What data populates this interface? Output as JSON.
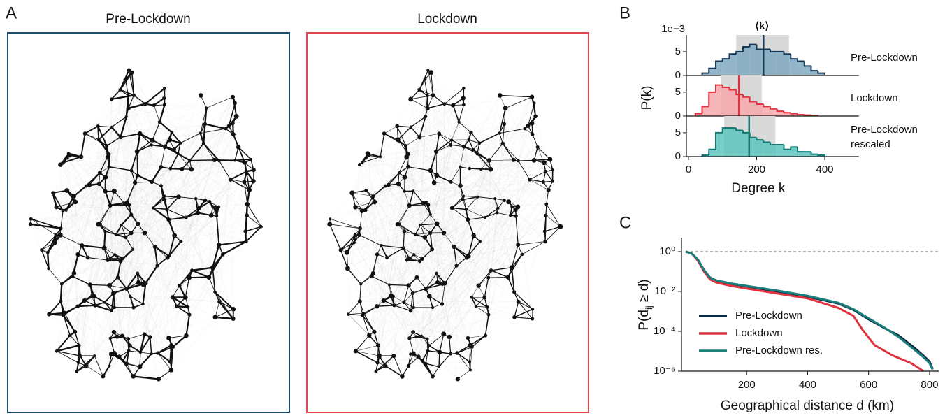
{
  "maps": {
    "label": "A",
    "titles": [
      "Pre-Lockdown",
      "Lockdown"
    ]
  },
  "chart_data": [
    {
      "type": "histogram",
      "label": "B",
      "xlabel": "Degree k",
      "ylabel": "P(k)",
      "offset_label": "1e−3",
      "mean_label": "⟨k⟩",
      "xlim": [
        0,
        500
      ],
      "xticks": [
        0,
        200,
        400
      ],
      "ylim": [
        0,
        8.5
      ],
      "yticks": [
        0,
        5
      ],
      "series": [
        {
          "name_lines": [
            "Pre-Lockdown"
          ],
          "color": "#163a5a",
          "fill": "#7fa8c0",
          "mean": 220,
          "band": [
            140,
            295
          ],
          "bins": [
            40,
            60,
            80,
            100,
            120,
            140,
            160,
            180,
            200,
            220,
            240,
            260,
            280,
            300,
            320,
            340,
            360,
            380,
            400
          ],
          "values": [
            0.5,
            1.5,
            3,
            3.5,
            4.5,
            5,
            6,
            6.5,
            5.5,
            5.5,
            5,
            5,
            4.5,
            3.5,
            3,
            2,
            1,
            0.5
          ]
        },
        {
          "name_lines": [
            "Lockdown"
          ],
          "color": "#e0333f",
          "fill": "#f6a8ad",
          "mean": 148,
          "band": [
            95,
            215
          ],
          "bins": [
            20,
            40,
            60,
            80,
            100,
            120,
            140,
            160,
            180,
            200,
            220,
            240,
            260,
            280,
            300,
            320,
            340,
            360,
            380
          ],
          "values": [
            0.5,
            2,
            5,
            6.5,
            6,
            5.5,
            4.5,
            4,
            3,
            2.5,
            2,
            1.5,
            1,
            0.7,
            0.5,
            0.3,
            0.2,
            0.1
          ]
        },
        {
          "name_lines": [
            "Pre-Lockdown",
            "rescaled"
          ],
          "color": "#127a73",
          "fill": "#5cc4bd",
          "mean": 178,
          "band": [
            105,
            255
          ],
          "bins": [
            40,
            60,
            80,
            100,
            120,
            140,
            160,
            180,
            200,
            220,
            240,
            260,
            280,
            300,
            320,
            340,
            360,
            380,
            400
          ],
          "values": [
            0.3,
            1.5,
            5,
            6,
            6,
            5.5,
            5,
            4,
            3.5,
            3,
            2.5,
            2.5,
            1.5,
            2,
            1,
            1,
            0.5,
            0.3
          ]
        }
      ]
    },
    {
      "type": "line",
      "label": "C",
      "xlabel": "Geographical distance d (km)",
      "ylabel": [
        "P(d",
        "ij",
        " ≥ d)"
      ],
      "log_y": true,
      "reference_line": 1,
      "xlim": [
        0,
        830
      ],
      "xticks": [
        200,
        400,
        600,
        800
      ],
      "ylim": [
        1e-06,
        5
      ],
      "yticks": [
        {
          "value": 1,
          "label": "10⁰"
        },
        {
          "value": 0.01,
          "label": "10⁻²"
        },
        {
          "value": 0.0001,
          "label": "10⁻⁴"
        },
        {
          "value": 1e-06,
          "label": "10⁻⁶"
        }
      ],
      "series": [
        {
          "name": "Pre-Lockdown",
          "color": "#0d2a45",
          "x": [
            0,
            20,
            40,
            60,
            80,
            100,
            150,
            200,
            300,
            400,
            500,
            550,
            600,
            650,
            700,
            750,
            780,
            800,
            810
          ],
          "values": [
            1,
            0.8,
            0.4,
            0.12,
            0.05,
            0.035,
            0.024,
            0.018,
            0.01,
            0.0055,
            0.0025,
            0.0012,
            0.0004,
            0.00015,
            6e-05,
            1.5e-05,
            6e-06,
            3e-06,
            1.3e-06
          ]
        },
        {
          "name": "Lockdown",
          "color": "#e0333f",
          "x": [
            0,
            20,
            40,
            60,
            80,
            100,
            150,
            200,
            300,
            400,
            500,
            550,
            580,
            620,
            680,
            740,
            780
          ],
          "values": [
            1,
            0.8,
            0.35,
            0.1,
            0.04,
            0.028,
            0.019,
            0.014,
            0.008,
            0.0045,
            0.0015,
            0.0006,
            0.00012,
            2e-05,
            6e-06,
            2.5e-06,
            1e-06
          ]
        },
        {
          "name": "Pre-Lockdown res.",
          "color": "#1a7f7a",
          "x": [
            0,
            20,
            40,
            60,
            80,
            100,
            150,
            200,
            300,
            400,
            500,
            550,
            600,
            650,
            700,
            750,
            780,
            800,
            810
          ],
          "values": [
            1,
            0.8,
            0.4,
            0.12,
            0.05,
            0.036,
            0.025,
            0.019,
            0.011,
            0.006,
            0.0027,
            0.0013,
            0.00045,
            0.00016,
            5e-05,
            1.2e-05,
            5e-06,
            2.5e-06,
            1.2e-06
          ]
        }
      ]
    }
  ]
}
